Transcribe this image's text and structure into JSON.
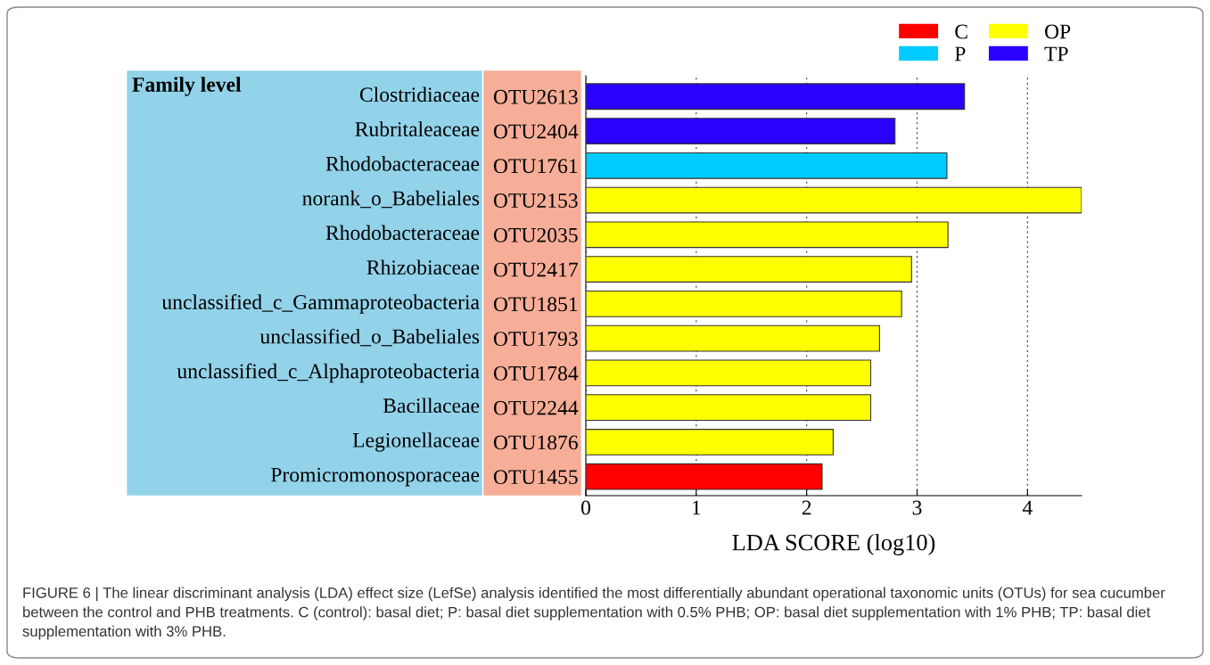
{
  "chart_data": {
    "type": "bar",
    "orientation": "horizontal",
    "categories": [
      "OTU2613",
      "OTU2404",
      "OTU1761",
      "OTU2153",
      "OTU2035",
      "OTU2417",
      "OTU1851",
      "OTU1793",
      "OTU1784",
      "OTU2244",
      "OTU1876",
      "OTU1455"
    ],
    "y2_categories": [
      "Clostridiaceae",
      "Rubritaleaceae",
      "Rhodobacteraceae",
      "norank_o_Babeliales",
      "Rhodobacteraceae",
      "Rhizobiaceae",
      "unclassified_c_Gammaproteobacteria",
      "unclassified_o_Babeliales",
      "unclassified_c_Alphaproteobacteria",
      "Bacillaceae",
      "Legionellaceae",
      "Promicromonosporaceae"
    ],
    "series": [
      {
        "name": "C",
        "color": "#ff0000",
        "values": [
          null,
          null,
          null,
          null,
          null,
          null,
          null,
          null,
          null,
          null,
          null,
          2.14
        ]
      },
      {
        "name": "P",
        "color": "#00ccff",
        "values": [
          null,
          null,
          3.27,
          null,
          null,
          null,
          null,
          null,
          null,
          null,
          null,
          null
        ]
      },
      {
        "name": "OP",
        "color": "#ffff00",
        "values": [
          null,
          null,
          null,
          4.49,
          3.28,
          2.95,
          2.86,
          2.66,
          2.58,
          2.58,
          2.24,
          null
        ]
      },
      {
        "name": "TP",
        "color": "#2a00ff",
        "values": [
          3.43,
          2.8,
          null,
          null,
          null,
          null,
          null,
          null,
          null,
          null,
          null,
          null
        ]
      }
    ],
    "xlabel": "LDA SCORE (log10)",
    "xlim": [
      0,
      4.49
    ],
    "xticks": [
      0,
      1,
      2,
      3,
      4
    ],
    "grid": "x",
    "legend": "top right",
    "annotations": [
      "Family level",
      "FIGURE 6 | The linear discriminant analysis (LDA) effect size (LefSe) analysis identified the most differentially abundant operational taxonomic units (OTUs) for sea cucumber between the control and PHB treatments. C (control): basal diet; P: basal diet supplementation with 0.5% PHB; OP: basal diet supplementation with 1% PHB; TP: basal diet supplementation with 3% PHB."
    ]
  }
}
